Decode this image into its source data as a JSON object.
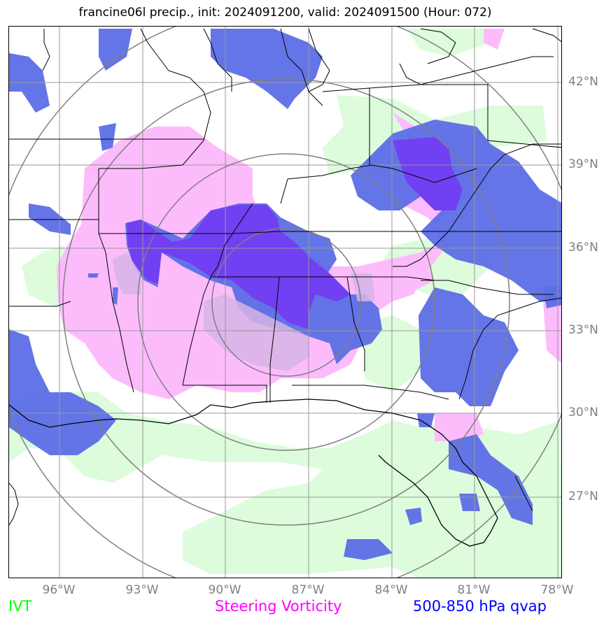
{
  "title": "francine06l precip., init: 2024091200, valid: 2024091500 (Hour: 072)",
  "axes": {
    "lat_ticks": [
      "42°N",
      "39°N",
      "36°N",
      "33°N",
      "30°N",
      "27°N"
    ],
    "lon_ticks": [
      "96°W",
      "93°W",
      "90°W",
      "87°W",
      "84°W",
      "81°W",
      "78°W"
    ]
  },
  "legend": {
    "ivt": "IVT",
    "steering": "Steering Vorticity",
    "qvap": "500-850 hPa qvap"
  },
  "colors": {
    "ivt": "#00ff00",
    "steering": "#ff00ff",
    "qvap": "#0000ff",
    "grid": "#808080",
    "ivt_fill": "#dcfcdc",
    "steering_fill": "#fcbcfc",
    "qvap_fill": "#5c6ee6",
    "overlap_fill": "#7040f2"
  }
}
